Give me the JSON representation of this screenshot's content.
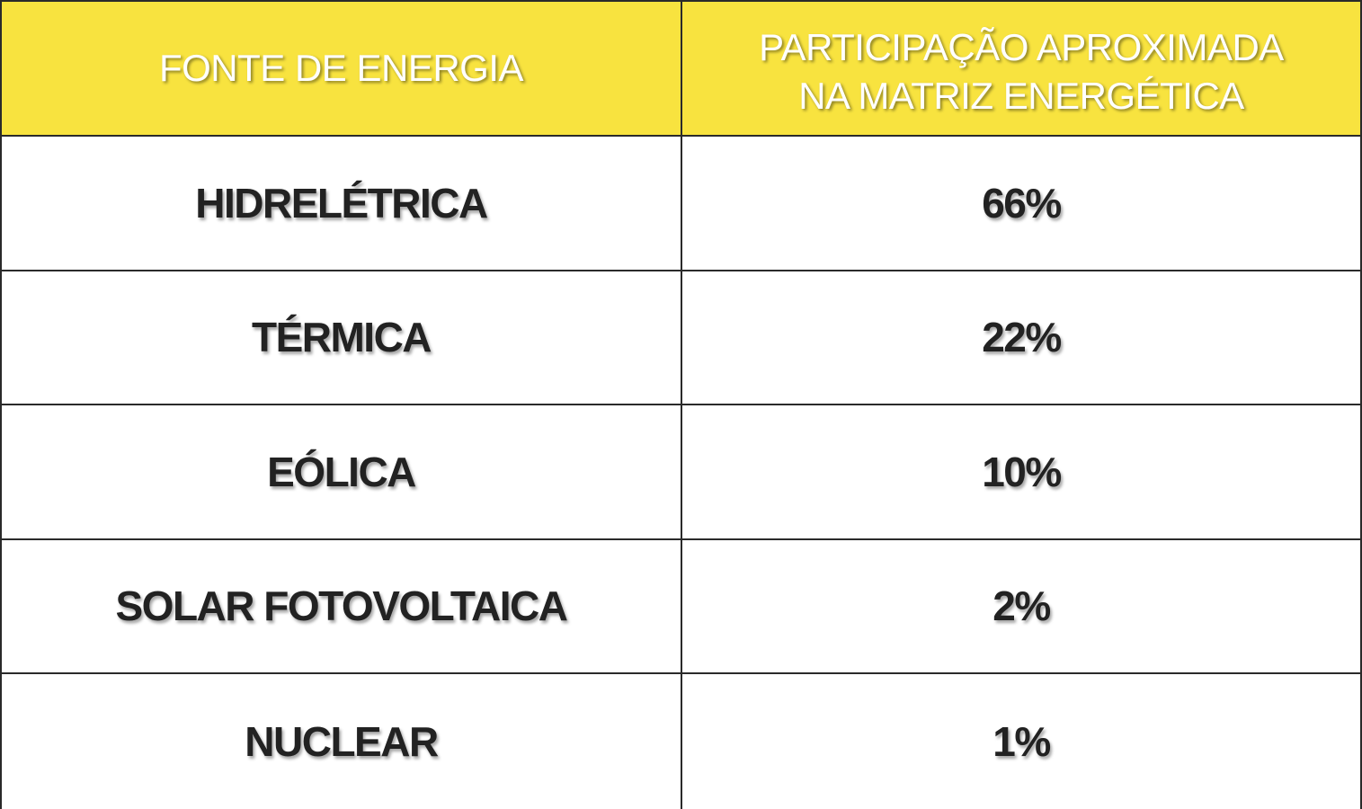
{
  "table": {
    "headers": [
      "FONTE DE ENERGIA",
      "PARTICIPAÇÃO APROXIMADA\nNA MATRIZ ENERGÉTICA"
    ],
    "header_col2_line1": "PARTICIPAÇÃO APROXIMADA",
    "header_col2_line2": "NA MATRIZ ENERGÉTICA",
    "rows": [
      {
        "fonte": "HIDRELÉTRICA",
        "participacao": "66%"
      },
      {
        "fonte": "TÉRMICA",
        "participacao": "22%"
      },
      {
        "fonte": "EÓLICA",
        "participacao": "10%"
      },
      {
        "fonte": "SOLAR FOTOVOLTAICA",
        "participacao": "2%"
      },
      {
        "fonte": "NUCLEAR",
        "participacao": "1%"
      }
    ]
  },
  "colors": {
    "header_background": "#f8e33f",
    "header_text": "#ffffff",
    "body_text": "#222222",
    "border": "#2a2a2a"
  }
}
